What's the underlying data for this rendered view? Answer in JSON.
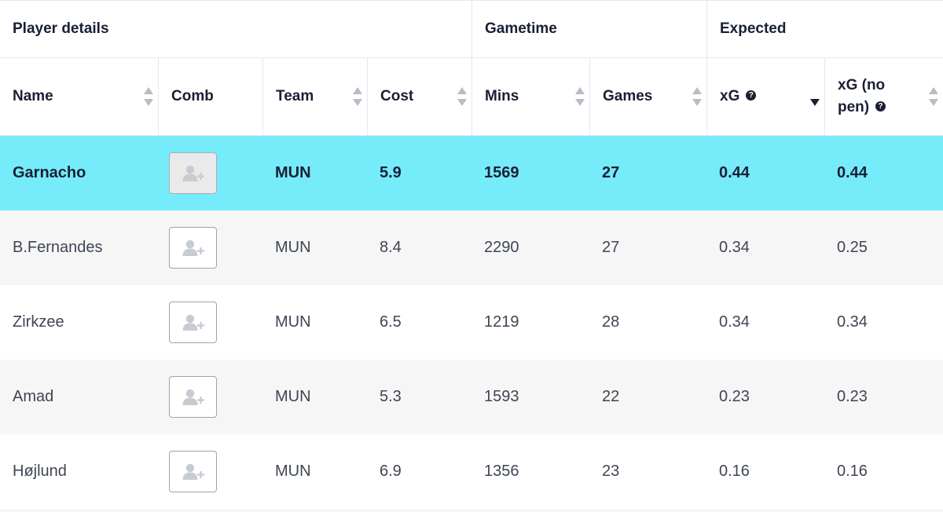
{
  "groups": [
    {
      "label": "Player details"
    },
    {
      "label": "Gametime"
    },
    {
      "label": "Expected"
    }
  ],
  "columns": [
    {
      "label": "Name",
      "sortable": true
    },
    {
      "label": "Comb",
      "sortable": false
    },
    {
      "label": "Team",
      "sortable": true
    },
    {
      "label": "Cost",
      "sortable": true
    },
    {
      "label": "Mins",
      "sortable": true
    },
    {
      "label": "Games",
      "sortable": true
    },
    {
      "label": "xG",
      "sortable": true,
      "help_icon": "question-icon",
      "sort_state": "descending"
    },
    {
      "label_line1": "xG (no",
      "label_line2": "pen)",
      "sortable": true,
      "help_icon": "question-icon"
    }
  ],
  "rows": [
    {
      "name": "Garnacho",
      "comb_icon": "add-user-icon",
      "team": "MUN",
      "cost": "5.9",
      "mins": "1569",
      "games": "27",
      "xg": "0.44",
      "xg_no_pen": "0.44",
      "highlighted": true
    },
    {
      "name": "B.Fernandes",
      "comb_icon": "add-user-icon",
      "team": "MUN",
      "cost": "8.4",
      "mins": "2290",
      "games": "27",
      "xg": "0.34",
      "xg_no_pen": "0.25",
      "highlighted": false
    },
    {
      "name": "Zirkzee",
      "comb_icon": "add-user-icon",
      "team": "MUN",
      "cost": "6.5",
      "mins": "1219",
      "games": "28",
      "xg": "0.34",
      "xg_no_pen": "0.34",
      "highlighted": false
    },
    {
      "name": "Amad",
      "comb_icon": "add-user-icon",
      "team": "MUN",
      "cost": "5.3",
      "mins": "1593",
      "games": "22",
      "xg": "0.23",
      "xg_no_pen": "0.23",
      "highlighted": false
    },
    {
      "name": "Højlund",
      "comb_icon": "add-user-icon",
      "team": "MUN",
      "cost": "6.9",
      "mins": "1356",
      "games": "23",
      "xg": "0.16",
      "xg_no_pen": "0.16",
      "highlighted": false
    }
  ],
  "colors": {
    "highlight_row": "#76ebfa",
    "alt_row": "#f6f6f6",
    "text": "#1a1f36",
    "muted_text": "#3f4555",
    "border": "#e6e8ee"
  }
}
